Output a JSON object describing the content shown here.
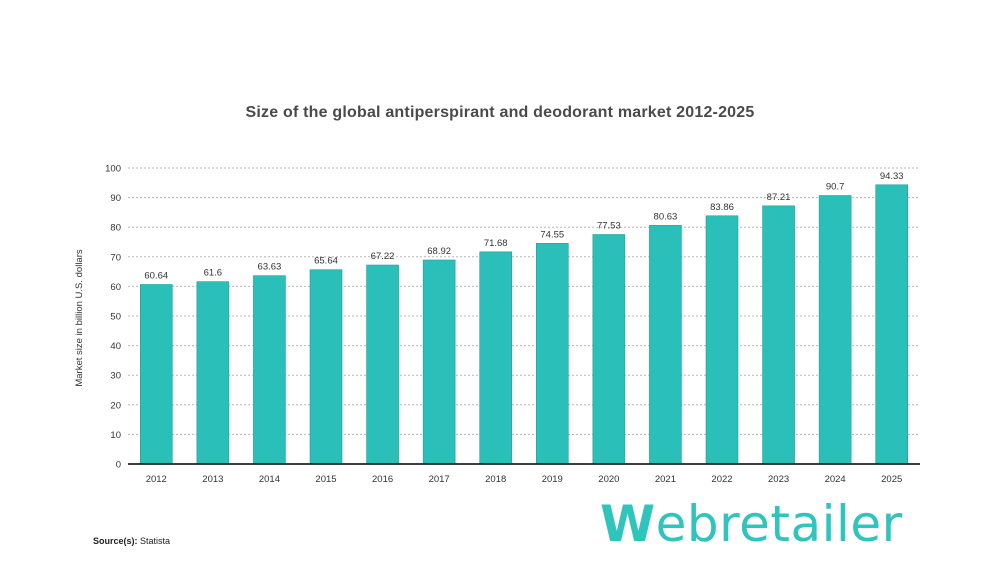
{
  "chart_data": {
    "type": "bar",
    "title": "Size of the global antiperspirant and deodorant market 2012-2025",
    "ylabel": "Market size in billion U.S. dollars",
    "xlabel": "",
    "categories": [
      "2012",
      "2013",
      "2014",
      "2015",
      "2016",
      "2017",
      "2018",
      "2019",
      "2020",
      "2021",
      "2022",
      "2023",
      "2024",
      "2025"
    ],
    "values": [
      60.64,
      61.6,
      63.63,
      65.64,
      67.22,
      68.92,
      71.68,
      74.55,
      77.53,
      80.63,
      83.86,
      87.21,
      90.7,
      94.33
    ],
    "value_labels": [
      "60.64",
      "61.6",
      "63.63",
      "65.64",
      "67.22",
      "68.92",
      "71.68",
      "74.55",
      "77.53",
      "80.63",
      "83.86",
      "87.21",
      "90.7",
      "94.33"
    ],
    "ylim": [
      0,
      100
    ],
    "yticks": [
      0,
      10,
      20,
      30,
      40,
      50,
      60,
      70,
      80,
      90,
      100
    ],
    "grid": true,
    "bar_color": "#2bbfb9",
    "grid_color": "#b5b5b5",
    "axis_color": "#222222"
  },
  "source": {
    "label": "Source(s):",
    "value": "Statista"
  },
  "logo": {
    "first_letter": "W",
    "rest": "ebretailer",
    "color": "#2fc4bc"
  }
}
